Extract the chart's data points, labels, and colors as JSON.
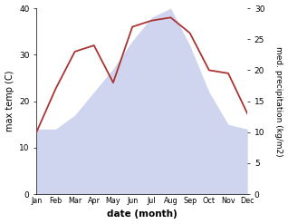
{
  "months": [
    "Jan",
    "Feb",
    "Mar",
    "Apr",
    "May",
    "Jun",
    "Jul",
    "Aug",
    "Sep",
    "Oct",
    "Nov",
    "Dec"
  ],
  "temp": [
    14,
    14,
    17,
    22,
    27,
    33,
    38,
    40,
    32,
    22,
    15,
    14
  ],
  "precip": [
    10,
    17,
    23,
    24,
    18,
    27,
    28,
    28.5,
    26,
    20,
    19.5,
    13
  ],
  "temp_fill_color": "#bbc4e8",
  "precip_color": "#aa3333",
  "temp_ylim": [
    0,
    40
  ],
  "precip_ylim": [
    0,
    30
  ],
  "temp_yticks": [
    0,
    10,
    20,
    30,
    40
  ],
  "precip_yticks": [
    0,
    5,
    10,
    15,
    20,
    25,
    30
  ],
  "xlabel": "date (month)",
  "ylabel_left": "max temp (C)",
  "ylabel_right": "med. precipitation (kg/m2)",
  "bg_color": "#ffffff"
}
